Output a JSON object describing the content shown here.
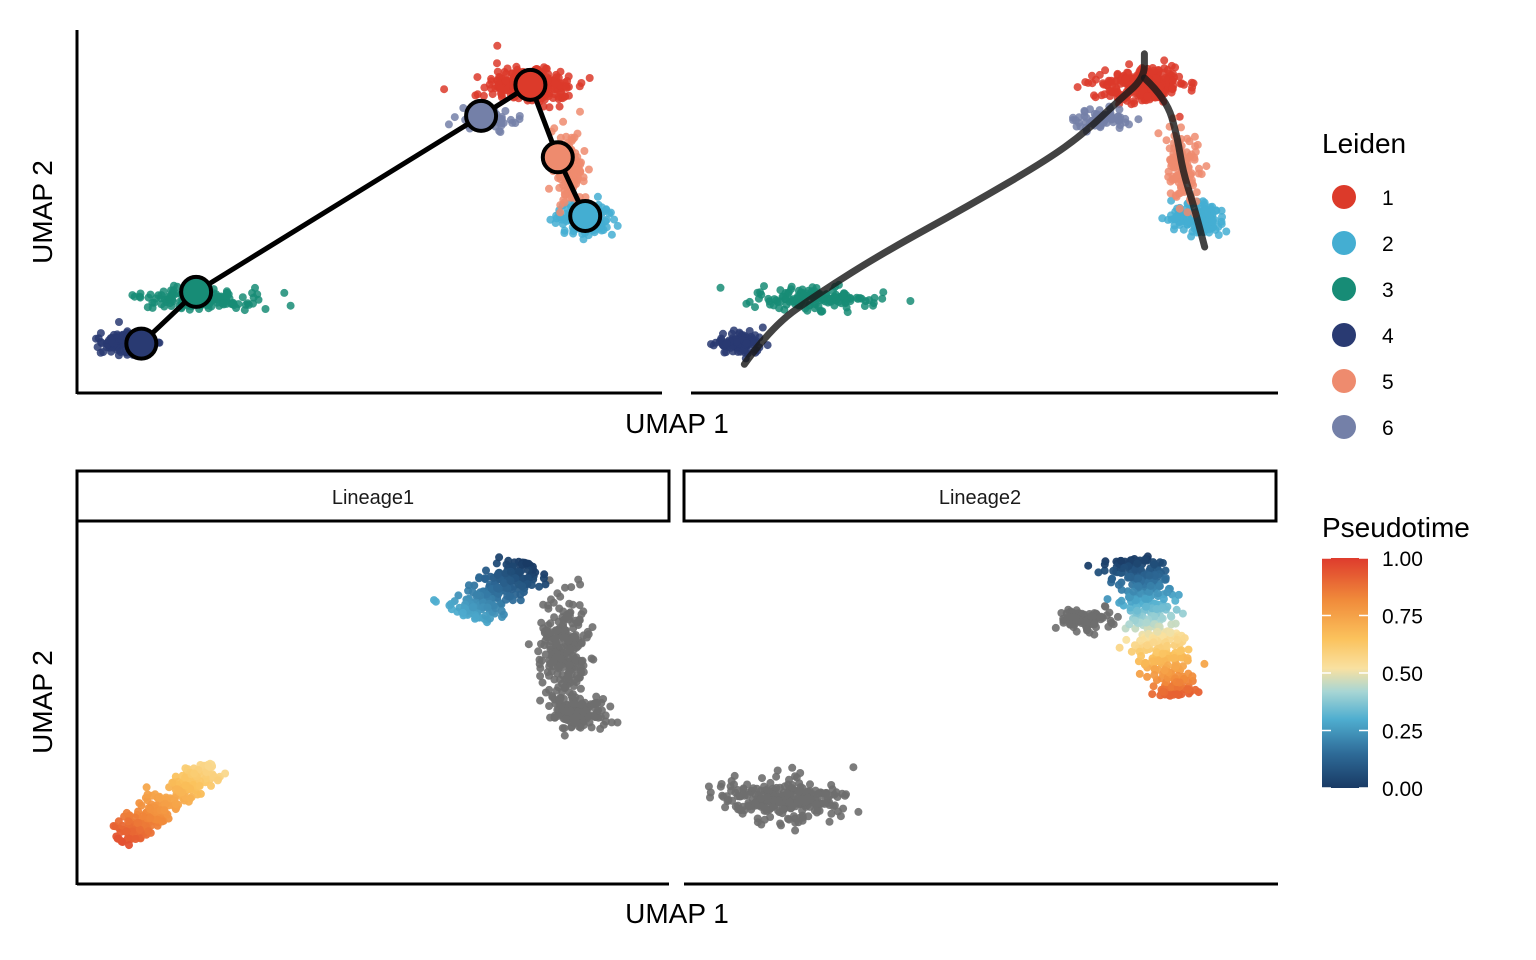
{
  "colors": {
    "cluster_1": "#DC3A2A",
    "cluster_2": "#44AED2",
    "cluster_3": "#178C76",
    "cluster_4": "#293A72",
    "cluster_5": "#EE8B6E",
    "cluster_6": "#7480A8",
    "unassigned": "#6E6E6E",
    "pseudotime_gradient": [
      "#193A64",
      "#2E6B98",
      "#4FAED0",
      "#A8D6D4",
      "#F9E1A1",
      "#FBC25C",
      "#F08A3A",
      "#DE3B2D"
    ]
  },
  "chart_data": [
    {
      "type": "scatter",
      "panel": "top-left",
      "variant": "cluster-graph",
      "xlabel": "",
      "ylabel": "UMAP 2",
      "axis_ticks": false,
      "grid": false,
      "xlim": [
        0,
        100
      ],
      "ylim": [
        0,
        100
      ],
      "series": [
        {
          "cluster": "1",
          "center": [
            80,
            87
          ],
          "spread": [
            6.5,
            4.5
          ],
          "n": 260
        },
        {
          "cluster": "2",
          "center": [
            90,
            48
          ],
          "spread": [
            4.2,
            3.8
          ],
          "n": 140
        },
        {
          "cluster": "3",
          "center": [
            20,
            25
          ],
          "spread": [
            9,
            2.5
          ],
          "n": 150
        },
        {
          "cluster": "4",
          "center": [
            6,
            12
          ],
          "spread": [
            3.5,
            2.7
          ],
          "n": 110
        },
        {
          "cluster": "5",
          "center": [
            87,
            63
          ],
          "spread": [
            2.5,
            9
          ],
          "n": 120
        },
        {
          "cluster": "6",
          "center": [
            72,
            77
          ],
          "spread": [
            4.5,
            2.5
          ],
          "n": 60
        }
      ],
      "graph_nodes": [
        {
          "cluster": "4",
          "x": 9,
          "y": 12
        },
        {
          "cluster": "3",
          "x": 19,
          "y": 27
        },
        {
          "cluster": "6",
          "x": 71,
          "y": 78
        },
        {
          "cluster": "1",
          "x": 80,
          "y": 87
        },
        {
          "cluster": "5",
          "x": 85,
          "y": 66
        },
        {
          "cluster": "2",
          "x": 90,
          "y": 49
        }
      ],
      "graph_edges": [
        [
          "4",
          "3"
        ],
        [
          "3",
          "6"
        ],
        [
          "6",
          "1"
        ],
        [
          "1",
          "5"
        ],
        [
          "5",
          "2"
        ]
      ]
    },
    {
      "type": "scatter",
      "panel": "top-right",
      "variant": "cluster-curves",
      "xlabel": "UMAP 1",
      "ylabel": "",
      "axis_ticks": false,
      "grid": false,
      "xlim": [
        0,
        100
      ],
      "ylim": [
        0,
        100
      ],
      "series": [
        {
          "cluster": "1",
          "center": [
            80,
            87
          ],
          "spread": [
            6.5,
            4.5
          ],
          "n": 260
        },
        {
          "cluster": "2",
          "center": [
            90,
            48
          ],
          "spread": [
            4.2,
            3.8
          ],
          "n": 140
        },
        {
          "cluster": "3",
          "center": [
            20,
            25
          ],
          "spread": [
            9,
            2.5
          ],
          "n": 150
        },
        {
          "cluster": "4",
          "center": [
            6,
            12
          ],
          "spread": [
            3.5,
            2.7
          ],
          "n": 110
        },
        {
          "cluster": "5",
          "center": [
            87,
            63
          ],
          "spread": [
            2.5,
            9
          ],
          "n": 120
        },
        {
          "cluster": "6",
          "center": [
            72,
            77
          ],
          "spread": [
            4.5,
            2.5
          ],
          "n": 60
        }
      ],
      "curves": [
        [
          [
            7,
            6
          ],
          [
            12,
            17
          ],
          [
            21,
            27
          ],
          [
            32,
            38
          ],
          [
            48,
            52
          ],
          [
            62,
            65
          ],
          [
            69,
            73
          ],
          [
            75,
            82
          ],
          [
            80,
            89
          ],
          [
            80,
            96
          ]
        ],
        [
          [
            80,
            89
          ],
          [
            84,
            83
          ],
          [
            86,
            72
          ],
          [
            87,
            62
          ],
          [
            89,
            52
          ],
          [
            91,
            40
          ]
        ]
      ]
    },
    {
      "type": "scatter",
      "panel": "bottom-left",
      "strip": "Lineage1",
      "xlabel": "",
      "ylabel": "UMAP 2",
      "axis_ticks": false,
      "grid": false,
      "xlim": [
        0,
        100
      ],
      "ylim": [
        0,
        100
      ],
      "pseudotime_segments": [
        {
          "from": [
            22,
            32
          ],
          "to": [
            5,
            10
          ],
          "pseudotime": [
            0.55,
            0.95
          ],
          "width": 3.5,
          "n": 260
        },
        {
          "from": [
            68,
            75
          ],
          "to": [
            80,
            90
          ],
          "pseudotime": [
            0.3,
            0.0
          ],
          "width": 5,
          "n": 230
        }
      ],
      "gray_clusters": [
        {
          "center": [
            86,
            65
          ],
          "spread": [
            3.5,
            13
          ],
          "n": 240
        },
        {
          "center": [
            89,
            47
          ],
          "spread": [
            4,
            4
          ],
          "n": 130
        }
      ]
    },
    {
      "type": "scatter",
      "panel": "bottom-right",
      "strip": "Lineage2",
      "xlabel": "UMAP 1",
      "ylabel": "",
      "axis_ticks": false,
      "grid": false,
      "xlim": [
        0,
        100
      ],
      "ylim": [
        0,
        100
      ],
      "pseudotime_segments": [
        {
          "from": [
            78,
            92
          ],
          "to": [
            86,
            52
          ],
          "pseudotime": [
            0.0,
            0.92
          ],
          "width": 5,
          "n": 430
        }
      ],
      "gray_clusters": [
        {
          "center": [
            14,
            22
          ],
          "spread": [
            9,
            5
          ],
          "n": 280
        },
        {
          "center": [
            69,
            74
          ],
          "spread": [
            4,
            3
          ],
          "n": 90
        }
      ]
    }
  ],
  "legend_leiden": {
    "title": "Leiden",
    "items": [
      {
        "label": "1",
        "color": "#DC3A2A"
      },
      {
        "label": "2",
        "color": "#44AED2"
      },
      {
        "label": "3",
        "color": "#178C76"
      },
      {
        "label": "4",
        "color": "#293A72"
      },
      {
        "label": "5",
        "color": "#EE8B6E"
      },
      {
        "label": "6",
        "color": "#7480A8"
      }
    ]
  },
  "legend_pseudotime": {
    "title": "Pseudotime",
    "range": [
      0,
      1
    ],
    "ticks": [
      "1.00",
      "0.75",
      "0.50",
      "0.25",
      "0.00"
    ]
  },
  "axis_titles": {
    "top_x": "UMAP 1",
    "top_y": "UMAP 2",
    "bottom_x": "UMAP 1",
    "bottom_y": "UMAP 2"
  },
  "strips": {
    "left": "Lineage1",
    "right": "Lineage2"
  }
}
